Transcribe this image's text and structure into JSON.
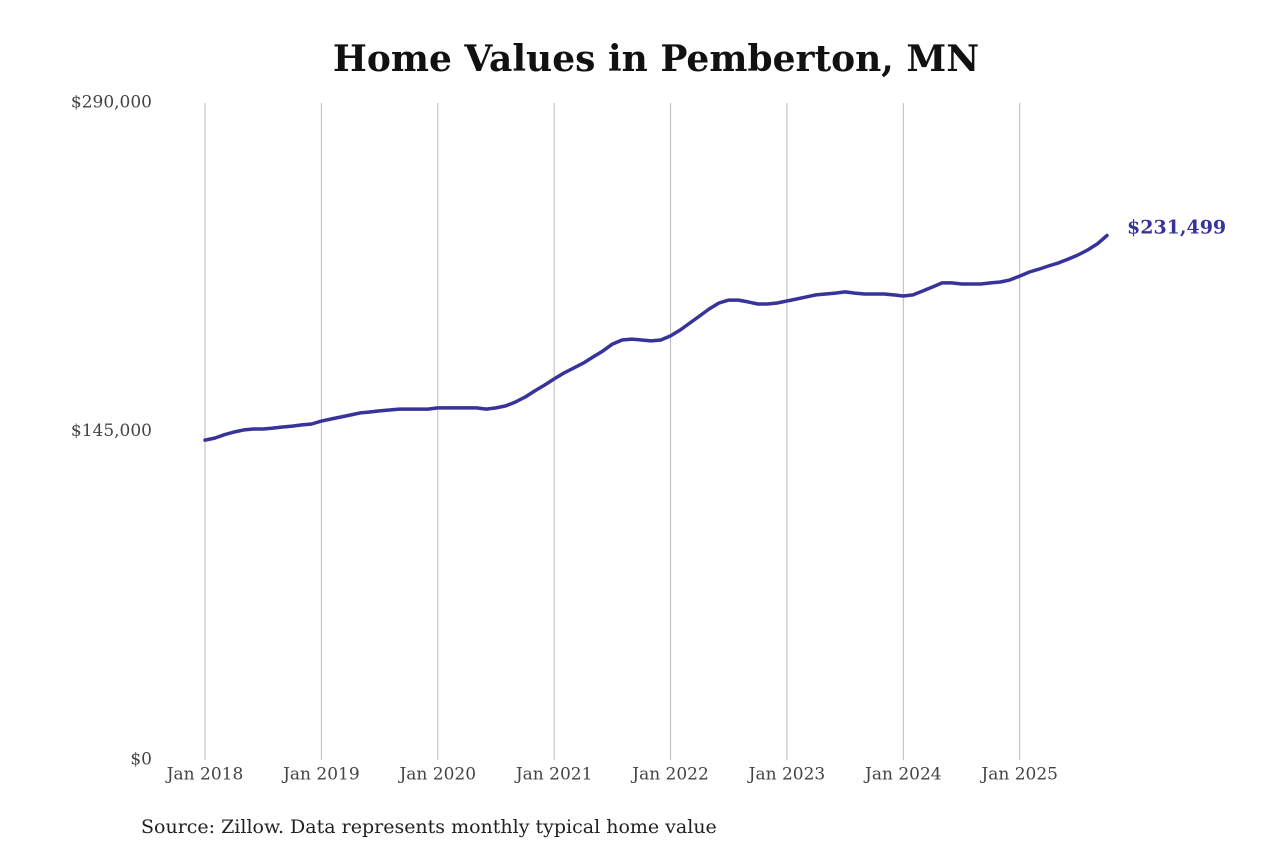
{
  "chart_data": {
    "type": "line",
    "title": "Home Values in Pemberton, MN",
    "source": "Source: Zillow. Data represents monthly typical home value",
    "x": [
      "2018-01",
      "2018-02",
      "2018-03",
      "2018-04",
      "2018-05",
      "2018-06",
      "2018-07",
      "2018-08",
      "2018-09",
      "2018-10",
      "2018-11",
      "2018-12",
      "2019-01",
      "2019-02",
      "2019-03",
      "2019-04",
      "2019-05",
      "2019-06",
      "2019-07",
      "2019-08",
      "2019-09",
      "2019-10",
      "2019-11",
      "2019-12",
      "2020-01",
      "2020-02",
      "2020-03",
      "2020-04",
      "2020-05",
      "2020-06",
      "2020-07",
      "2020-08",
      "2020-09",
      "2020-10",
      "2020-11",
      "2020-12",
      "2021-01",
      "2021-02",
      "2021-03",
      "2021-04",
      "2021-05",
      "2021-06",
      "2021-07",
      "2021-08",
      "2021-09",
      "2021-10",
      "2021-11",
      "2021-12",
      "2022-01",
      "2022-02",
      "2022-03",
      "2022-04",
      "2022-05",
      "2022-06",
      "2022-07",
      "2022-08",
      "2022-09",
      "2022-10",
      "2022-11",
      "2022-12",
      "2023-01",
      "2023-02",
      "2023-03",
      "2023-04",
      "2023-05",
      "2023-06",
      "2023-07",
      "2023-08",
      "2023-09",
      "2023-10",
      "2023-11",
      "2023-12",
      "2024-01",
      "2024-02",
      "2024-03",
      "2024-04",
      "2024-05",
      "2024-06",
      "2024-07",
      "2024-08",
      "2024-09",
      "2024-10",
      "2024-11",
      "2024-12",
      "2025-01",
      "2025-02",
      "2025-03",
      "2025-04",
      "2025-05",
      "2025-06",
      "2025-07",
      "2025-08",
      "2025-09",
      "2025-10"
    ],
    "series": [
      {
        "name": "Home value",
        "color": "#38339a",
        "values": [
          141200,
          142100,
          143600,
          144800,
          145700,
          146100,
          146100,
          146500,
          147000,
          147400,
          147900,
          148300,
          149600,
          150500,
          151400,
          152300,
          153200,
          153600,
          154100,
          154500,
          154900,
          154900,
          154900,
          154900,
          155400,
          155400,
          155400,
          155400,
          155400,
          154900,
          155400,
          156300,
          158000,
          160200,
          162900,
          165500,
          168200,
          170800,
          173000,
          175200,
          177900,
          180500,
          183600,
          185400,
          185800,
          185400,
          185000,
          185400,
          187200,
          189800,
          192900,
          196000,
          199100,
          201700,
          203000,
          203000,
          202200,
          201300,
          201300,
          201700,
          202600,
          203500,
          204400,
          205300,
          205700,
          206100,
          206600,
          206100,
          205700,
          205700,
          205700,
          205300,
          204800,
          205300,
          207000,
          208800,
          210600,
          210600,
          210100,
          210100,
          210100,
          210600,
          211000,
          211900,
          213600,
          215400,
          216700,
          218100,
          219400,
          221100,
          222900,
          225100,
          227800,
          231499
        ],
        "end_label": "$231,499"
      }
    ],
    "xlim": [
      "2018-01",
      "2025-10"
    ],
    "xticks": [
      {
        "value": "2018-01",
        "label": "Jan 2018"
      },
      {
        "value": "2019-01",
        "label": "Jan 2019"
      },
      {
        "value": "2020-01",
        "label": "Jan 2020"
      },
      {
        "value": "2021-01",
        "label": "Jan 2021"
      },
      {
        "value": "2022-01",
        "label": "Jan 2022"
      },
      {
        "value": "2023-01",
        "label": "Jan 2023"
      },
      {
        "value": "2024-01",
        "label": "Jan 2024"
      },
      {
        "value": "2025-01",
        "label": "Jan 2025"
      }
    ],
    "ylim": [
      0,
      290000
    ],
    "yticks": [
      {
        "value": 0,
        "label": "$0"
      },
      {
        "value": 145000,
        "label": "$145,000"
      },
      {
        "value": 290000,
        "label": "$290,000"
      }
    ],
    "grid": true
  }
}
